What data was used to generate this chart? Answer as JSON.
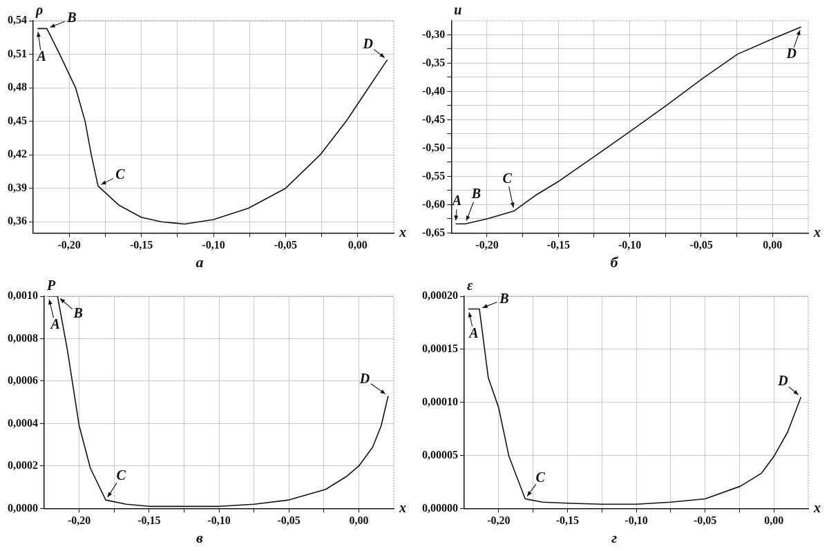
{
  "chart_data": [
    {
      "type": "line",
      "title": "а",
      "xlabel": "x",
      "ylabel": "ρ",
      "color": "#111111",
      "marker": "none",
      "line_style": "solid",
      "grid": true,
      "legend": false,
      "x": [
        -0.222,
        -0.2155,
        -0.2066,
        -0.1956,
        -0.189,
        -0.1847,
        -0.18,
        -0.1657,
        -0.15,
        -0.136,
        -0.12,
        -0.1,
        -0.076,
        -0.05,
        -0.026,
        -0.008,
        0.008,
        0.0205
      ],
      "values": [
        0.533,
        0.533,
        0.51,
        0.48,
        0.45,
        0.42,
        0.392,
        0.375,
        0.364,
        0.36,
        0.358,
        0.362,
        0.372,
        0.39,
        0.42,
        0.45,
        0.481,
        0.505
      ],
      "xlim": [
        -0.225,
        0.025
      ],
      "ylim": [
        0.35,
        0.54
      ],
      "xticks": [
        {
          "value": -0.2,
          "label": "-0,20"
        },
        {
          "value": -0.175,
          "label": null
        },
        {
          "value": -0.15,
          "label": "-0,15"
        },
        {
          "value": -0.125,
          "label": null
        },
        {
          "value": -0.1,
          "label": "-0,10"
        },
        {
          "value": -0.075,
          "label": null
        },
        {
          "value": -0.05,
          "label": "-0,05"
        },
        {
          "value": -0.025,
          "label": null
        },
        {
          "value": 0,
          "label": "0,00"
        }
      ],
      "yticks": [
        {
          "value": 0.36,
          "label": "0,36"
        },
        {
          "value": 0.39,
          "label": "0,39"
        },
        {
          "value": 0.42,
          "label": "0,42"
        },
        {
          "value": 0.45,
          "label": "0,45"
        },
        {
          "value": 0.48,
          "label": "0,48"
        },
        {
          "value": 0.51,
          "label": "0,51"
        },
        {
          "value": 0.54,
          "label": "0,54"
        }
      ],
      "annotations": [
        {
          "text": "A",
          "x": -0.222,
          "y": 0.533
        },
        {
          "text": "B",
          "x": -0.2155,
          "y": 0.533
        },
        {
          "text": "C",
          "x": -0.18,
          "y": 0.392
        },
        {
          "text": "D",
          "x": 0.0205,
          "y": 0.505
        }
      ]
    },
    {
      "type": "line",
      "title": "б",
      "xlabel": "x",
      "ylabel": "u",
      "color": "#111111",
      "marker": "none",
      "line_style": "solid",
      "grid": true,
      "legend": false,
      "x": [
        -0.222,
        -0.2153,
        -0.2,
        -0.181,
        -0.1663,
        -0.15,
        -0.1255,
        -0.1,
        -0.0745,
        -0.049,
        -0.0245,
        0,
        0.02
      ],
      "values": [
        -0.634,
        -0.634,
        -0.625,
        -0.611,
        -0.584,
        -0.559,
        -0.516,
        -0.471,
        -0.425,
        -0.377,
        -0.334,
        -0.307,
        -0.286
      ],
      "xlim": [
        -0.225,
        0.025
      ],
      "ylim": [
        -0.65,
        -0.275
      ],
      "xticks": [
        {
          "value": -0.2,
          "label": "-0,20"
        },
        {
          "value": -0.175,
          "label": null
        },
        {
          "value": -0.15,
          "label": "-0,15"
        },
        {
          "value": -0.125,
          "label": null
        },
        {
          "value": -0.1,
          "label": "-0,10"
        },
        {
          "value": -0.075,
          "label": null
        },
        {
          "value": -0.05,
          "label": "-0,05"
        },
        {
          "value": -0.025,
          "label": null
        },
        {
          "value": 0,
          "label": "0,00"
        }
      ],
      "yticks": [
        {
          "value": -0.65,
          "label": "-0,65"
        },
        {
          "value": -0.625,
          "label": null
        },
        {
          "value": -0.6,
          "label": "-0,60"
        },
        {
          "value": -0.575,
          "label": null
        },
        {
          "value": -0.55,
          "label": "-0,55"
        },
        {
          "value": -0.525,
          "label": null
        },
        {
          "value": -0.5,
          "label": "-0,50"
        },
        {
          "value": -0.475,
          "label": null
        },
        {
          "value": -0.45,
          "label": "-0,45"
        },
        {
          "value": -0.425,
          "label": null
        },
        {
          "value": -0.4,
          "label": "-0,40"
        },
        {
          "value": -0.375,
          "label": null
        },
        {
          "value": -0.35,
          "label": "-0,35"
        },
        {
          "value": -0.325,
          "label": null
        },
        {
          "value": -0.3,
          "label": "-0,30"
        }
      ],
      "annotations": [
        {
          "text": "A",
          "x": -0.222,
          "y": -0.634
        },
        {
          "text": "B",
          "x": -0.2153,
          "y": -0.634
        },
        {
          "text": "C",
          "x": -0.181,
          "y": -0.611
        },
        {
          "text": "D",
          "x": 0.02,
          "y": -0.286
        }
      ]
    },
    {
      "type": "line",
      "title": "в",
      "xlabel": "x",
      "ylabel": "P",
      "color": "#111111",
      "marker": "none",
      "line_style": "solid",
      "grid": true,
      "legend": false,
      "x": [
        -0.222,
        -0.2155,
        -0.2085,
        -0.2,
        -0.192,
        -0.181,
        -0.1664,
        -0.15,
        -0.1248,
        -0.0996,
        -0.0748,
        -0.05,
        -0.0237,
        -0.009,
        0,
        0.01,
        0.016,
        0.021
      ],
      "values": [
        0.001,
        0.001,
        0.00075,
        0.00039,
        0.00019,
        4e-05,
        2e-05,
        1e-05,
        1e-05,
        1e-05,
        2e-05,
        4e-05,
        9e-05,
        0.00015,
        0.0002,
        0.00029,
        0.00039,
        0.00053
      ],
      "xlim": [
        -0.225,
        0.025
      ],
      "ylim": [
        0,
        0.001
      ],
      "xticks": [
        {
          "value": -0.2,
          "label": "-0,20"
        },
        {
          "value": -0.175,
          "label": null
        },
        {
          "value": -0.15,
          "label": "-0,15"
        },
        {
          "value": -0.125,
          "label": null
        },
        {
          "value": -0.1,
          "label": "-0,10"
        },
        {
          "value": -0.075,
          "label": null
        },
        {
          "value": -0.05,
          "label": "-0,05"
        },
        {
          "value": -0.025,
          "label": null
        },
        {
          "value": 0,
          "label": "0,00"
        }
      ],
      "yticks": [
        {
          "value": 0,
          "label": "0,0000"
        },
        {
          "value": 0.0002,
          "label": "0,0002"
        },
        {
          "value": 0.0004,
          "label": "0,0004"
        },
        {
          "value": 0.0006,
          "label": "0,0006"
        },
        {
          "value": 0.0008,
          "label": "0,0008"
        },
        {
          "value": 0.001,
          "label": "0,0010"
        }
      ],
      "annotations": [
        {
          "text": "A",
          "x": -0.222,
          "y": 0.001
        },
        {
          "text": "B",
          "x": -0.2155,
          "y": 0.001
        },
        {
          "text": "C",
          "x": -0.181,
          "y": 4e-05
        },
        {
          "text": "D",
          "x": 0.021,
          "y": 0.00053
        }
      ]
    },
    {
      "type": "line",
      "title": "г",
      "xlabel": "x",
      "ylabel": "ε",
      "color": "#111111",
      "marker": "none",
      "line_style": "solid",
      "grid": true,
      "legend": false,
      "x": [
        -0.222,
        -0.214,
        -0.2075,
        -0.2,
        -0.1925,
        -0.1807,
        -0.168,
        -0.15,
        -0.125,
        -0.1,
        -0.075,
        -0.05,
        -0.0243,
        -0.0092,
        0,
        0.01,
        0.0197
      ],
      "values": [
        0.000188,
        0.000188,
        0.000123,
        9.5e-05,
        4.9e-05,
        9e-06,
        6e-06,
        5e-06,
        4e-06,
        4e-06,
        6e-06,
        9e-06,
        2.1e-05,
        3.3e-05,
        4.9e-05,
        7.2e-05,
        0.000105
      ],
      "xlim": [
        -0.225,
        0.025
      ],
      "ylim": [
        0,
        0.0002
      ],
      "xticks": [
        {
          "value": -0.2,
          "label": "-0,20"
        },
        {
          "value": -0.175,
          "label": null
        },
        {
          "value": -0.15,
          "label": "-0,15"
        },
        {
          "value": -0.125,
          "label": null
        },
        {
          "value": -0.1,
          "label": "-0,10"
        },
        {
          "value": -0.075,
          "label": null
        },
        {
          "value": -0.05,
          "label": "-0,05"
        },
        {
          "value": -0.025,
          "label": null
        },
        {
          "value": 0,
          "label": "0,00"
        }
      ],
      "yticks": [
        {
          "value": 0,
          "label": "0,00000"
        },
        {
          "value": 5e-05,
          "label": "0,00005"
        },
        {
          "value": 0.0001,
          "label": "0,00010"
        },
        {
          "value": 0.00015,
          "label": "0,00015"
        },
        {
          "value": 0.0002,
          "label": "0,00020"
        }
      ],
      "annotations": [
        {
          "text": "A",
          "x": -0.222,
          "y": 0.000188
        },
        {
          "text": "B",
          "x": -0.214,
          "y": 0.000188
        },
        {
          "text": "C",
          "x": -0.1807,
          "y": 9e-06
        },
        {
          "text": "D",
          "x": 0.0197,
          "y": 0.000105
        }
      ]
    }
  ]
}
